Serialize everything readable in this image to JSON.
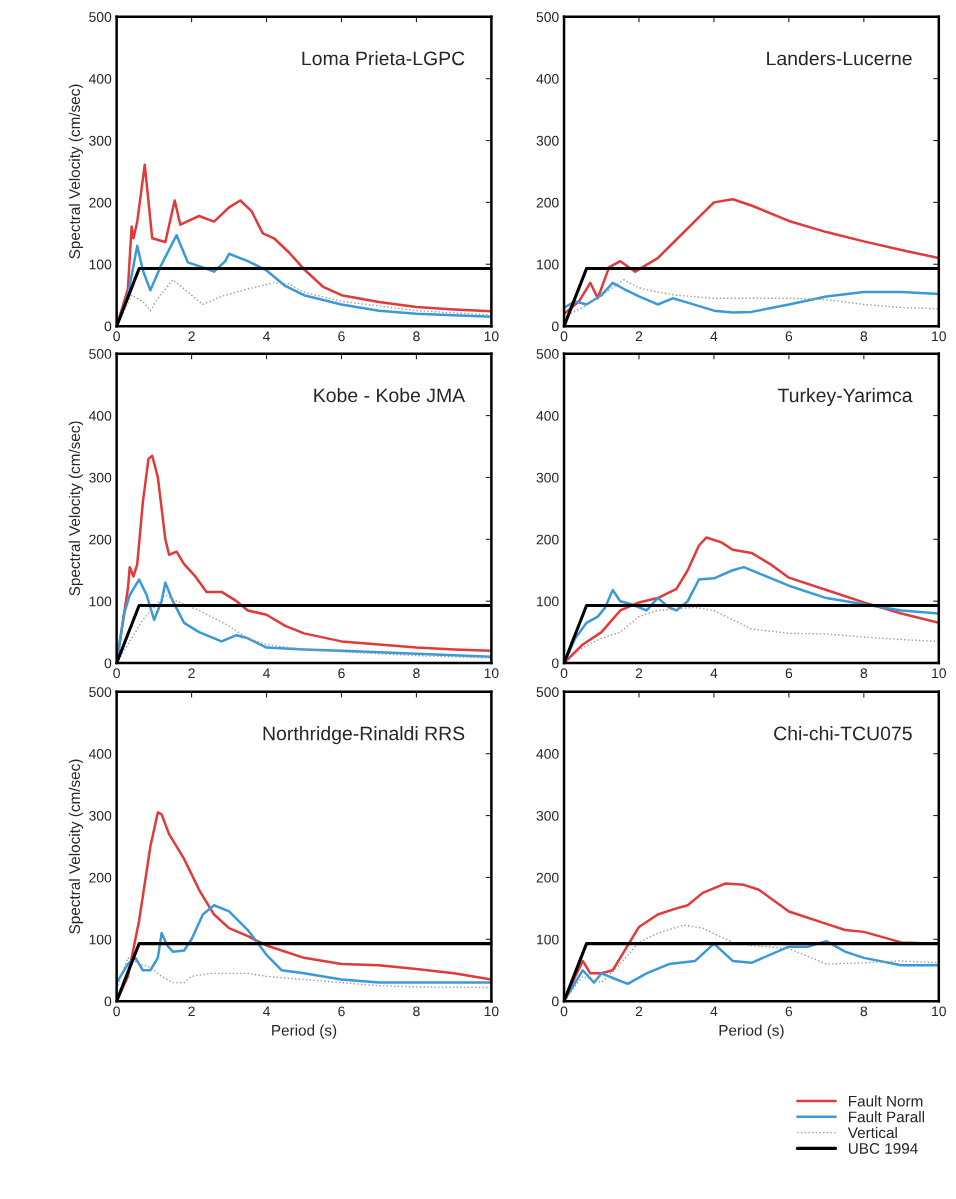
{
  "chart_data": [
    {
      "type": "line",
      "title": "Loma Prieta-LGPC",
      "ylabel": "Spectral Velocity (cm/sec)",
      "xlim": [
        0,
        10
      ],
      "ylim": [
        0,
        500
      ],
      "xticks": [
        0,
        2,
        4,
        6,
        8,
        10
      ],
      "yticks": [
        0,
        100,
        200,
        300,
        400,
        500
      ],
      "legend": false,
      "series": [
        {
          "color": "#e03a3a",
          "line_style": "solid",
          "x": [
            0,
            0.3,
            0.4,
            0.45,
            0.55,
            0.75,
            0.95,
            1.3,
            1.55,
            1.7,
            2.2,
            2.6,
            3.0,
            3.3,
            3.6,
            3.9,
            4.2,
            4.6,
            5.0,
            5.5,
            6,
            7,
            8,
            9,
            10
          ],
          "values": [
            0,
            60,
            161,
            142,
            169,
            261,
            142,
            136,
            203,
            164,
            178,
            169,
            192,
            203,
            186,
            150,
            142,
            119,
            92,
            64,
            50,
            39,
            31,
            27,
            24
          ]
        },
        {
          "color": "#3a9ad9",
          "line_style": "solid",
          "x": [
            0,
            0.3,
            0.55,
            0.7,
            0.9,
            1.2,
            1.6,
            1.9,
            2.3,
            2.6,
            2.9,
            3.0,
            3.5,
            4,
            4.5,
            5,
            6,
            7,
            8,
            10
          ],
          "values": [
            0,
            50,
            130,
            90,
            58,
            100,
            147,
            103,
            95,
            88,
            105,
            117,
            105,
            90,
            65,
            50,
            35,
            25,
            20,
            15
          ]
        },
        {
          "color": "#999999",
          "line_style": "dotted",
          "x": [
            0,
            0.4,
            0.7,
            0.9,
            1.1,
            1.5,
            1.8,
            2.3,
            2.8,
            3.5,
            4.2,
            4.6,
            5,
            6,
            8,
            10
          ],
          "values": [
            0,
            50,
            40,
            25,
            45,
            75,
            60,
            35,
            48,
            60,
            70,
            68,
            55,
            40,
            25,
            18
          ]
        },
        {
          "color": "#000000",
          "line_style": "solid",
          "x": [
            0,
            0.6,
            10
          ],
          "values": [
            0,
            93,
            93
          ]
        }
      ]
    },
    {
      "type": "line",
      "title": "Landers-Lucerne",
      "xlim": [
        0,
        10
      ],
      "ylim": [
        0,
        500
      ],
      "xticks": [
        0,
        2,
        4,
        6,
        8,
        10
      ],
      "yticks": [
        0,
        100,
        200,
        300,
        400,
        500
      ],
      "legend": false,
      "series": [
        {
          "color": "#e03a3a",
          "line_style": "solid",
          "x": [
            0,
            0.4,
            0.7,
            0.9,
            1.2,
            1.5,
            1.9,
            2.5,
            3,
            3.5,
            4,
            4.5,
            5,
            6,
            7,
            8,
            9,
            10
          ],
          "values": [
            20,
            40,
            70,
            45,
            95,
            105,
            88,
            110,
            140,
            170,
            200,
            205,
            195,
            170,
            152,
            137,
            123,
            110
          ]
        },
        {
          "color": "#3a9ad9",
          "line_style": "solid",
          "x": [
            0,
            0.3,
            0.6,
            1.0,
            1.3,
            1.6,
            2,
            2.5,
            2.9,
            3.3,
            4,
            4.5,
            5,
            6,
            7,
            8,
            9,
            10
          ],
          "values": [
            30,
            40,
            35,
            50,
            70,
            60,
            48,
            35,
            45,
            38,
            25,
            22,
            23,
            35,
            48,
            55,
            55,
            52
          ]
        },
        {
          "color": "#999999",
          "line_style": "dotted",
          "x": [
            0,
            0.5,
            1,
            1.6,
            2,
            2.5,
            3,
            4,
            5,
            6,
            7,
            8,
            9,
            10
          ],
          "values": [
            15,
            30,
            50,
            75,
            62,
            55,
            50,
            45,
            45,
            45,
            43,
            35,
            30,
            28
          ]
        },
        {
          "color": "#000000",
          "line_style": "solid",
          "x": [
            0,
            0.6,
            10
          ],
          "values": [
            0,
            93,
            93
          ]
        }
      ]
    },
    {
      "type": "line",
      "title": "Kobe - Kobe JMA",
      "ylabel": "Spectral Velocity (cm/sec)",
      "xlim": [
        0,
        10
      ],
      "ylim": [
        0,
        500
      ],
      "xticks": [
        0,
        2,
        4,
        6,
        8,
        10
      ],
      "yticks": [
        0,
        100,
        200,
        300,
        400,
        500
      ],
      "legend": false,
      "series": [
        {
          "color": "#e03a3a",
          "line_style": "solid",
          "x": [
            0,
            0.3,
            0.35,
            0.45,
            0.55,
            0.7,
            0.85,
            0.95,
            1.1,
            1.3,
            1.4,
            1.6,
            1.8,
            2.1,
            2.4,
            2.8,
            3.2,
            3.5,
            4,
            4.5,
            5,
            6,
            7,
            8,
            9,
            10
          ],
          "values": [
            0,
            120,
            155,
            140,
            160,
            260,
            330,
            335,
            300,
            200,
            175,
            180,
            160,
            140,
            115,
            115,
            100,
            85,
            78,
            60,
            48,
            35,
            30,
            25,
            22,
            20
          ]
        },
        {
          "color": "#3a9ad9",
          "line_style": "solid",
          "x": [
            0,
            0.2,
            0.35,
            0.6,
            0.8,
            1.0,
            1.2,
            1.3,
            1.5,
            1.8,
            2.2,
            2.8,
            3.2,
            3.5,
            4,
            5,
            6,
            8,
            10
          ],
          "values": [
            0,
            80,
            110,
            135,
            110,
            70,
            100,
            130,
            100,
            65,
            50,
            35,
            45,
            40,
            25,
            22,
            20,
            15,
            10
          ]
        },
        {
          "color": "#999999",
          "line_style": "dotted",
          "x": [
            0,
            0.5,
            0.7,
            1.0,
            1.3,
            1.6,
            2.2,
            3,
            3.5,
            4,
            5,
            6,
            8,
            10
          ],
          "values": [
            0,
            50,
            70,
            90,
            110,
            100,
            85,
            60,
            40,
            30,
            22,
            18,
            12,
            8
          ]
        },
        {
          "color": "#000000",
          "line_style": "solid",
          "x": [
            0,
            0.6,
            10
          ],
          "values": [
            0,
            93,
            93
          ]
        }
      ]
    },
    {
      "type": "line",
      "title": "Turkey-Yarimca",
      "xlim": [
        0,
        10
      ],
      "ylim": [
        0,
        500
      ],
      "xticks": [
        0,
        2,
        4,
        6,
        8,
        10
      ],
      "yticks": [
        0,
        100,
        200,
        300,
        400,
        500
      ],
      "legend": false,
      "series": [
        {
          "color": "#e03a3a",
          "line_style": "solid",
          "x": [
            0,
            0.5,
            1,
            1.5,
            2,
            2.5,
            3,
            3.3,
            3.6,
            3.8,
            4.2,
            4.5,
            5,
            5.5,
            6,
            7,
            8,
            9,
            10
          ],
          "values": [
            0,
            30,
            50,
            85,
            98,
            105,
            120,
            150,
            190,
            203,
            195,
            183,
            178,
            160,
            138,
            118,
            98,
            80,
            65
          ]
        },
        {
          "color": "#3a9ad9",
          "line_style": "solid",
          "x": [
            0,
            0.3,
            0.6,
            0.9,
            1.1,
            1.3,
            1.5,
            1.8,
            2.2,
            2.5,
            2.8,
            3.0,
            3.3,
            3.6,
            4,
            4.5,
            4.8,
            5.2,
            6,
            7,
            8,
            9,
            10
          ],
          "values": [
            0,
            40,
            65,
            75,
            90,
            118,
            100,
            95,
            85,
            105,
            90,
            85,
            100,
            135,
            137,
            150,
            155,
            145,
            125,
            105,
            95,
            85,
            80
          ]
        },
        {
          "color": "#999999",
          "line_style": "dotted",
          "x": [
            0,
            0.5,
            1,
            1.5,
            2,
            2.5,
            3.5,
            4,
            4.5,
            5,
            6,
            7,
            8,
            9,
            10
          ],
          "values": [
            0,
            25,
            40,
            50,
            75,
            85,
            90,
            85,
            70,
            55,
            48,
            47,
            42,
            38,
            35
          ]
        },
        {
          "color": "#000000",
          "line_style": "solid",
          "x": [
            0,
            0.6,
            10
          ],
          "values": [
            0,
            93,
            93
          ]
        }
      ]
    },
    {
      "type": "line",
      "title": "Northridge-Rinaldi RRS",
      "xlabel": "Period (s)",
      "ylabel": "Spectral Velocity (cm/sec)",
      "xlim": [
        0,
        10
      ],
      "ylim": [
        0,
        500
      ],
      "xticks": [
        0,
        2,
        4,
        6,
        8,
        10
      ],
      "yticks": [
        0,
        100,
        200,
        300,
        400,
        500
      ],
      "legend": false,
      "series": [
        {
          "color": "#e03a3a",
          "line_style": "solid",
          "x": [
            0,
            0.3,
            0.6,
            0.9,
            1.1,
            1.2,
            1.4,
            1.8,
            2.2,
            2.6,
            3,
            3.5,
            4,
            5,
            6,
            7,
            8,
            9,
            10
          ],
          "values": [
            0,
            40,
            130,
            250,
            305,
            302,
            270,
            230,
            180,
            140,
            118,
            105,
            90,
            70,
            60,
            58,
            52,
            45,
            35
          ]
        },
        {
          "color": "#3a9ad9",
          "line_style": "solid",
          "x": [
            0,
            0.3,
            0.5,
            0.7,
            0.9,
            1.1,
            1.2,
            1.35,
            1.5,
            1.8,
            2.0,
            2.3,
            2.6,
            3,
            3.5,
            4,
            4.4,
            5,
            6,
            7,
            8,
            10
          ],
          "values": [
            30,
            60,
            70,
            50,
            50,
            70,
            110,
            90,
            80,
            82,
            100,
            140,
            155,
            145,
            115,
            75,
            50,
            45,
            35,
            30,
            30,
            30
          ]
        },
        {
          "color": "#999999",
          "line_style": "dotted",
          "x": [
            0,
            0.3,
            0.6,
            0.9,
            1.2,
            1.5,
            1.8,
            2.0,
            2.5,
            3.5,
            4,
            5,
            6,
            7,
            8,
            10
          ],
          "values": [
            20,
            70,
            60,
            55,
            40,
            30,
            30,
            40,
            45,
            45,
            40,
            35,
            30,
            25,
            23,
            22
          ]
        },
        {
          "color": "#000000",
          "line_style": "solid",
          "x": [
            0,
            0.6,
            10
          ],
          "values": [
            0,
            93,
            93
          ]
        }
      ]
    },
    {
      "type": "line",
      "title": "Chi-chi-TCU075",
      "xlabel": "Period (s)",
      "xlim": [
        0,
        10
      ],
      "ylim": [
        0,
        500
      ],
      "xticks": [
        0,
        2,
        4,
        6,
        8,
        10
      ],
      "yticks": [
        0,
        100,
        200,
        300,
        400,
        500
      ],
      "legend": "bottom right",
      "series": [
        {
          "name": "Fault Norm",
          "color": "#e03a3a",
          "line_style": "solid",
          "x": [
            0,
            0.3,
            0.5,
            0.7,
            1,
            1.3,
            1.6,
            2,
            2.5,
            3,
            3.3,
            3.7,
            4.3,
            4.8,
            5.2,
            6,
            7,
            7.5,
            8,
            9,
            10
          ],
          "values": [
            0,
            40,
            65,
            45,
            45,
            50,
            80,
            120,
            140,
            150,
            155,
            175,
            190,
            188,
            180,
            145,
            125,
            115,
            112,
            95,
            93
          ]
        },
        {
          "name": "Fault Parall",
          "color": "#3a9ad9",
          "line_style": "solid",
          "x": [
            0,
            0.3,
            0.5,
            0.8,
            1.0,
            1.4,
            1.7,
            2.2,
            2.8,
            3.5,
            4,
            4.5,
            5,
            6,
            6.5,
            7,
            7.5,
            8,
            9,
            10
          ],
          "values": [
            0,
            30,
            50,
            30,
            45,
            35,
            28,
            45,
            60,
            65,
            93,
            65,
            62,
            88,
            88,
            97,
            80,
            70,
            58,
            58
          ]
        },
        {
          "name": "Vertical",
          "color": "#999999",
          "line_style": "dotted",
          "x": [
            0,
            0.5,
            1,
            1.5,
            2,
            2.5,
            3.2,
            3.7,
            4.5,
            5,
            6,
            7,
            8,
            9,
            10
          ],
          "values": [
            0,
            40,
            30,
            60,
            95,
            110,
            123,
            118,
            95,
            90,
            85,
            60,
            62,
            65,
            62
          ]
        },
        {
          "name": "UBC 1994",
          "color": "#000000",
          "line_style": "solid",
          "x": [
            0,
            0.6,
            10
          ],
          "values": [
            0,
            93,
            93
          ]
        }
      ]
    }
  ]
}
